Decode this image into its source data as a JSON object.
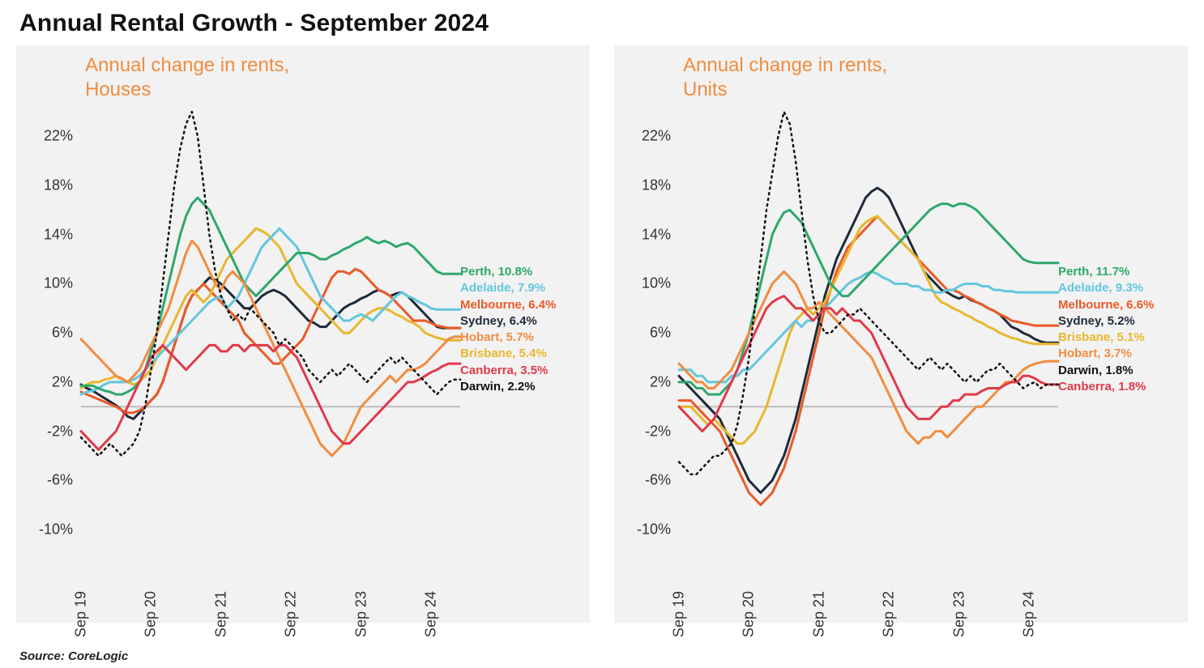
{
  "title": "Annual Rental Growth - September 2024",
  "source": "Source: CoreLogic",
  "chart_style": {
    "panel_bg": "#f2f2f2",
    "title_color": "#f28c3f",
    "title_fontsize": 24,
    "axis_tick_fontsize": 18,
    "axis_tick_color": "#333333",
    "zero_line_color": "#bdbdbd",
    "zero_line_width": 2,
    "series_line_width": 3,
    "darwin_line_width": 2.5,
    "legend_fontsize": 15,
    "legend_fontweight": 700,
    "font_family": "Arial"
  },
  "axes": {
    "x": {
      "domain_months": [
        0,
        65
      ],
      "tick_positions": [
        0,
        12,
        24,
        36,
        48,
        60
      ],
      "tick_labels": [
        "Sep 19",
        "Sep 20",
        "Sep 21",
        "Sep 22",
        "Sep 23",
        "Sep 24"
      ],
      "tick_rotation_deg": -90
    },
    "y": {
      "domain": [
        -10,
        24
      ],
      "tick_values": [
        -10,
        -6,
        -2,
        2,
        6,
        10,
        14,
        18,
        22
      ],
      "tick_labels": [
        "-10%",
        "-6%",
        "-2%",
        "2%",
        "6%",
        "10%",
        "14%",
        "18%",
        "22%"
      ]
    }
  },
  "colors": {
    "Perth": "#2ea86b",
    "Adelaide": "#63c6dd",
    "Melbourne": "#eb5a28",
    "Sydney": "#1e2a39",
    "Hobart": "#f28c3f",
    "Brisbane": "#e8b72e",
    "Canberra": "#e03a4a",
    "Darwin": "#111111"
  },
  "panels": [
    {
      "key": "houses",
      "title_line1": "Annual change in rents,",
      "title_line2": "Houses",
      "legend_order": [
        "Perth",
        "Adelaide",
        "Melbourne",
        "Sydney",
        "Hobart",
        "Brisbane",
        "Canberra",
        "Darwin"
      ],
      "legend_values": {
        "Perth": "10.8%",
        "Adelaide": "7.9%",
        "Melbourne": "6.4%",
        "Sydney": "6.4%",
        "Hobart": "5.7%",
        "Brisbane": "5.4%",
        "Canberra": "3.5%",
        "Darwin": "2.2%"
      },
      "series": {
        "Sydney": [
          1.8,
          1.5,
          1.3,
          1.0,
          0.7,
          0.4,
          0.1,
          -0.3,
          -0.8,
          -1.0,
          -0.5,
          0.0,
          0.5,
          1.0,
          2.0,
          3.5,
          5.0,
          6.5,
          8.0,
          9.0,
          9.5,
          10.0,
          10.5,
          10.3,
          10.0,
          9.5,
          9.0,
          8.5,
          8.0,
          8.0,
          8.5,
          9.0,
          9.3,
          9.5,
          9.3,
          9.0,
          8.5,
          8.0,
          7.5,
          7.0,
          6.8,
          6.5,
          6.5,
          7.0,
          7.5,
          8.0,
          8.3,
          8.5,
          8.8,
          9.0,
          9.3,
          9.5,
          9.3,
          9.0,
          9.2,
          9.3,
          9.0,
          8.5,
          8.0,
          7.5,
          7.0,
          6.5,
          6.4,
          6.4,
          6.4,
          6.4
        ],
        "Melbourne": [
          1.2,
          1.0,
          0.8,
          0.6,
          0.4,
          0.2,
          0.0,
          -0.3,
          -0.5,
          -0.5,
          -0.3,
          0.0,
          0.5,
          1.0,
          2.0,
          3.5,
          5.0,
          6.5,
          8.0,
          9.0,
          9.5,
          10.0,
          9.5,
          9.0,
          8.5,
          8.0,
          7.5,
          7.0,
          6.0,
          5.5,
          5.0,
          4.5,
          4.0,
          3.5,
          3.5,
          4.0,
          4.5,
          5.0,
          5.5,
          6.5,
          7.5,
          8.5,
          9.5,
          10.5,
          11.0,
          11.0,
          10.8,
          11.2,
          11.0,
          10.5,
          10.0,
          9.5,
          9.3,
          9.0,
          8.5,
          8.0,
          7.5,
          7.0,
          7.0,
          7.0,
          6.8,
          6.6,
          6.5,
          6.4,
          6.4,
          6.4
        ],
        "Brisbane": [
          1.5,
          1.8,
          2.0,
          2.0,
          2.2,
          2.3,
          2.5,
          2.2,
          2.0,
          1.8,
          2.0,
          2.5,
          3.0,
          4.0,
          5.0,
          6.0,
          7.0,
          8.0,
          9.0,
          9.5,
          9.0,
          8.5,
          9.0,
          10.0,
          11.0,
          12.0,
          12.5,
          13.0,
          13.5,
          14.0,
          14.5,
          14.3,
          14.0,
          13.5,
          13.0,
          12.0,
          11.0,
          10.0,
          9.5,
          9.0,
          8.5,
          8.0,
          7.5,
          7.0,
          6.5,
          6.0,
          6.0,
          6.5,
          7.0,
          7.5,
          7.8,
          8.0,
          8.0,
          7.8,
          7.5,
          7.3,
          7.0,
          6.8,
          6.5,
          6.0,
          5.8,
          5.6,
          5.5,
          5.4,
          5.4,
          5.4
        ],
        "Adelaide": [
          1.0,
          1.2,
          1.3,
          1.5,
          1.8,
          2.0,
          2.0,
          2.0,
          2.0,
          2.2,
          2.5,
          3.0,
          3.5,
          4.0,
          4.5,
          5.0,
          5.5,
          6.0,
          6.5,
          7.0,
          7.5,
          8.0,
          8.5,
          8.8,
          9.0,
          8.0,
          8.5,
          9.0,
          10.0,
          11.0,
          12.0,
          13.0,
          13.5,
          14.0,
          14.5,
          14.0,
          13.5,
          13.0,
          12.0,
          11.0,
          10.0,
          9.0,
          8.5,
          8.0,
          7.5,
          7.0,
          7.0,
          7.3,
          7.5,
          7.3,
          7.0,
          7.5,
          8.0,
          8.5,
          9.0,
          9.3,
          9.0,
          8.8,
          8.5,
          8.3,
          8.0,
          7.9,
          7.9,
          7.9,
          7.9,
          7.9
        ],
        "Perth": [
          1.7,
          1.7,
          1.7,
          1.5,
          1.3,
          1.2,
          1.0,
          1.0,
          1.2,
          1.5,
          2.0,
          3.0,
          4.5,
          6.0,
          8.0,
          10.0,
          12.0,
          14.0,
          15.5,
          16.5,
          17.0,
          16.5,
          16.0,
          15.0,
          14.0,
          13.0,
          12.0,
          11.0,
          10.0,
          9.5,
          9.0,
          9.5,
          10.0,
          10.5,
          11.0,
          11.5,
          12.0,
          12.5,
          12.5,
          12.5,
          12.3,
          12.0,
          12.0,
          12.3,
          12.5,
          12.8,
          13.0,
          13.3,
          13.5,
          13.8,
          13.5,
          13.3,
          13.5,
          13.3,
          13.0,
          13.2,
          13.3,
          13.0,
          12.5,
          12.0,
          11.5,
          11.0,
          10.8,
          10.8,
          10.8,
          10.8
        ],
        "Hobart": [
          5.5,
          5.0,
          4.5,
          4.0,
          3.5,
          3.0,
          2.5,
          2.3,
          2.0,
          2.5,
          3.0,
          4.0,
          5.0,
          6.0,
          7.0,
          8.0,
          9.5,
          11.0,
          12.5,
          13.5,
          13.0,
          12.0,
          11.0,
          10.0,
          9.5,
          10.5,
          11.0,
          10.5,
          10.0,
          9.0,
          8.0,
          7.0,
          6.0,
          5.0,
          4.0,
          3.0,
          2.0,
          1.0,
          0.0,
          -1.0,
          -2.0,
          -3.0,
          -3.5,
          -4.0,
          -3.5,
          -3.0,
          -2.0,
          -1.0,
          0.0,
          0.5,
          1.0,
          1.5,
          2.0,
          2.5,
          2.0,
          2.5,
          3.0,
          3.0,
          3.2,
          3.5,
          4.0,
          4.5,
          5.0,
          5.5,
          5.7,
          5.7
        ],
        "Canberra": [
          -2.0,
          -2.5,
          -3.0,
          -3.5,
          -3.0,
          -2.5,
          -2.0,
          -1.0,
          0.0,
          1.0,
          2.0,
          3.0,
          4.0,
          4.5,
          5.0,
          4.5,
          4.0,
          3.5,
          3.0,
          3.5,
          4.0,
          4.5,
          5.0,
          5.0,
          4.5,
          4.5,
          5.0,
          5.0,
          4.5,
          5.0,
          5.0,
          5.0,
          5.0,
          4.5,
          5.0,
          5.0,
          4.5,
          4.0,
          3.0,
          2.0,
          1.0,
          0.0,
          -1.0,
          -2.0,
          -2.5,
          -3.0,
          -3.0,
          -2.5,
          -2.0,
          -1.5,
          -1.0,
          -0.5,
          0.0,
          0.5,
          1.0,
          1.5,
          2.0,
          2.0,
          2.2,
          2.5,
          2.8,
          3.0,
          3.3,
          3.5,
          3.5,
          3.5
        ],
        "Darwin": [
          -2.5,
          -3.0,
          -3.5,
          -4.0,
          -3.5,
          -3.0,
          -3.5,
          -4.0,
          -3.5,
          -3.0,
          -2.0,
          0.0,
          3.0,
          6.0,
          10.0,
          14.0,
          18.0,
          21.0,
          23.0,
          24.0,
          22.0,
          18.0,
          14.0,
          11.0,
          9.0,
          8.0,
          7.0,
          7.5,
          7.0,
          8.0,
          7.5,
          7.0,
          6.5,
          6.0,
          5.0,
          5.5,
          5.0,
          4.5,
          4.0,
          3.0,
          2.5,
          2.0,
          2.5,
          3.0,
          2.5,
          3.0,
          3.5,
          3.0,
          2.5,
          2.0,
          2.5,
          3.0,
          3.5,
          4.0,
          3.5,
          4.0,
          3.5,
          3.0,
          2.5,
          2.0,
          1.5,
          1.0,
          1.5,
          2.0,
          2.2,
          2.2
        ]
      },
      "dashed": {
        "Darwin": true
      }
    },
    {
      "key": "units",
      "title_line1": "Annual change in rents,",
      "title_line2": "Units",
      "legend_order": [
        "Perth",
        "Adelaide",
        "Melbourne",
        "Sydney",
        "Brisbane",
        "Hobart",
        "Darwin",
        "Canberra"
      ],
      "legend_values": {
        "Perth": "11.7%",
        "Adelaide": "9.3%",
        "Melbourne": "6.6%",
        "Sydney": "5.2%",
        "Brisbane": "5.1%",
        "Hobart": "3.7%",
        "Darwin": "1.8%",
        "Canberra": "1.8%"
      },
      "series": {
        "Sydney": [
          2.5,
          2.0,
          1.5,
          1.0,
          0.5,
          0.0,
          -0.5,
          -1.0,
          -2.0,
          -3.0,
          -4.0,
          -5.0,
          -6.0,
          -6.5,
          -7.0,
          -6.5,
          -6.0,
          -5.0,
          -4.0,
          -2.5,
          -1.0,
          1.0,
          3.0,
          5.0,
          7.0,
          9.0,
          10.5,
          12.0,
          13.0,
          14.0,
          15.0,
          16.0,
          17.0,
          17.5,
          17.8,
          17.5,
          17.0,
          16.0,
          15.0,
          14.0,
          13.0,
          12.0,
          11.0,
          10.5,
          10.0,
          9.5,
          9.3,
          9.0,
          8.8,
          9.0,
          8.7,
          8.5,
          8.3,
          8.0,
          7.8,
          7.5,
          7.0,
          6.5,
          6.3,
          6.0,
          5.8,
          5.5,
          5.3,
          5.2,
          5.2,
          5.2
        ],
        "Melbourne": [
          0.5,
          0.5,
          0.5,
          0.0,
          -0.5,
          -1.0,
          -1.5,
          -2.0,
          -3.0,
          -4.0,
          -5.0,
          -6.0,
          -7.0,
          -7.5,
          -8.0,
          -7.5,
          -7.0,
          -6.0,
          -5.0,
          -3.5,
          -2.0,
          0.0,
          2.0,
          4.0,
          6.0,
          8.0,
          9.5,
          11.0,
          12.0,
          13.0,
          13.5,
          14.0,
          14.5,
          15.0,
          15.5,
          15.0,
          14.5,
          14.0,
          13.5,
          13.0,
          12.5,
          12.0,
          11.5,
          11.0,
          10.5,
          10.0,
          9.5,
          9.5,
          9.3,
          9.0,
          8.8,
          8.5,
          8.3,
          8.0,
          7.8,
          7.5,
          7.3,
          7.0,
          6.9,
          6.8,
          6.7,
          6.6,
          6.6,
          6.6,
          6.6,
          6.6
        ],
        "Brisbane": [
          0.0,
          0.0,
          0.0,
          -0.5,
          -1.0,
          -1.5,
          -1.0,
          -1.5,
          -2.0,
          -2.5,
          -3.0,
          -3.0,
          -2.5,
          -2.0,
          -1.0,
          0.0,
          1.5,
          3.0,
          4.5,
          6.0,
          7.0,
          7.5,
          8.0,
          7.5,
          8.0,
          8.5,
          9.5,
          10.5,
          11.5,
          12.5,
          13.5,
          14.5,
          15.0,
          15.3,
          15.5,
          15.0,
          14.5,
          14.0,
          13.5,
          13.0,
          12.5,
          12.0,
          11.0,
          10.0,
          9.0,
          8.5,
          8.3,
          8.0,
          7.8,
          7.5,
          7.3,
          7.0,
          6.8,
          6.5,
          6.3,
          6.0,
          5.8,
          5.6,
          5.5,
          5.3,
          5.2,
          5.1,
          5.1,
          5.1,
          5.1,
          5.1
        ],
        "Adelaide": [
          3.0,
          3.0,
          3.0,
          2.5,
          2.5,
          2.0,
          2.0,
          2.0,
          2.0,
          2.5,
          2.5,
          3.0,
          3.0,
          3.5,
          4.0,
          4.5,
          5.0,
          5.5,
          6.0,
          6.5,
          7.0,
          6.5,
          7.0,
          7.0,
          7.5,
          8.0,
          8.5,
          9.0,
          9.5,
          10.0,
          10.3,
          10.5,
          10.8,
          11.0,
          10.8,
          10.5,
          10.3,
          10.0,
          10.0,
          10.0,
          9.8,
          9.8,
          9.5,
          9.5,
          9.3,
          9.3,
          9.5,
          9.5,
          9.8,
          10.0,
          10.0,
          10.0,
          9.8,
          9.8,
          9.5,
          9.5,
          9.4,
          9.4,
          9.3,
          9.3,
          9.3,
          9.3,
          9.3,
          9.3,
          9.3,
          9.3
        ],
        "Perth": [
          2.0,
          2.0,
          2.0,
          1.5,
          1.5,
          1.0,
          1.0,
          1.0,
          1.5,
          2.0,
          3.0,
          4.5,
          6.0,
          8.0,
          10.0,
          12.0,
          14.0,
          15.0,
          15.8,
          16.0,
          15.5,
          15.0,
          14.0,
          13.0,
          12.0,
          11.0,
          10.0,
          9.5,
          9.0,
          9.0,
          9.5,
          10.0,
          10.5,
          11.0,
          11.5,
          12.0,
          12.5,
          13.0,
          13.5,
          14.0,
          14.5,
          15.0,
          15.5,
          16.0,
          16.3,
          16.5,
          16.5,
          16.3,
          16.5,
          16.5,
          16.3,
          16.0,
          15.5,
          15.0,
          14.5,
          14.0,
          13.5,
          13.0,
          12.5,
          12.0,
          11.8,
          11.7,
          11.7,
          11.7,
          11.7,
          11.7
        ],
        "Hobart": [
          3.5,
          3.0,
          2.5,
          2.0,
          2.0,
          1.5,
          1.5,
          2.0,
          2.5,
          3.0,
          4.0,
          5.0,
          6.0,
          7.0,
          8.0,
          9.0,
          10.0,
          10.5,
          11.0,
          10.5,
          10.0,
          9.0,
          8.0,
          8.0,
          8.5,
          8.0,
          7.5,
          7.0,
          6.5,
          6.0,
          5.5,
          5.0,
          4.5,
          4.0,
          3.0,
          2.0,
          1.0,
          0.0,
          -1.0,
          -2.0,
          -2.5,
          -3.0,
          -2.5,
          -2.5,
          -2.0,
          -2.0,
          -2.5,
          -2.0,
          -1.5,
          -1.0,
          -0.5,
          0.0,
          0.0,
          0.5,
          1.0,
          1.5,
          2.0,
          2.0,
          2.5,
          3.0,
          3.3,
          3.5,
          3.6,
          3.7,
          3.7,
          3.7
        ],
        "Canberra": [
          0.0,
          -0.5,
          -1.0,
          -1.5,
          -2.0,
          -1.5,
          -1.0,
          0.0,
          1.0,
          2.0,
          3.0,
          4.0,
          5.0,
          6.0,
          7.0,
          8.0,
          8.5,
          8.8,
          9.0,
          8.5,
          8.0,
          8.0,
          7.5,
          7.0,
          7.5,
          8.0,
          8.0,
          7.5,
          8.0,
          7.5,
          7.0,
          7.0,
          6.5,
          6.0,
          5.0,
          4.0,
          3.0,
          2.0,
          1.0,
          0.0,
          -0.5,
          -1.0,
          -1.0,
          -1.0,
          -0.5,
          0.0,
          0.0,
          0.5,
          0.5,
          1.0,
          1.0,
          1.0,
          1.3,
          1.5,
          1.5,
          1.5,
          1.8,
          2.0,
          2.0,
          2.5,
          2.5,
          2.3,
          2.0,
          1.8,
          1.8,
          1.8
        ],
        "Darwin": [
          -4.5,
          -5.0,
          -5.5,
          -5.5,
          -5.0,
          -4.5,
          -4.0,
          -4.0,
          -3.5,
          -3.0,
          -1.5,
          1.0,
          4.0,
          8.0,
          12.0,
          16.0,
          19.0,
          22.0,
          24.0,
          23.0,
          20.0,
          16.0,
          12.0,
          9.0,
          7.0,
          6.0,
          6.0,
          6.5,
          7.0,
          7.5,
          7.5,
          8.0,
          7.5,
          7.0,
          6.5,
          6.0,
          5.5,
          5.0,
          4.5,
          4.0,
          3.5,
          3.0,
          3.5,
          4.0,
          3.5,
          3.0,
          3.5,
          3.0,
          2.5,
          2.0,
          2.5,
          2.0,
          2.5,
          3.0,
          3.0,
          3.5,
          3.0,
          2.5,
          2.0,
          1.5,
          1.8,
          2.0,
          1.5,
          1.8,
          1.8,
          1.8
        ]
      },
      "dashed": {
        "Darwin": true
      }
    }
  ]
}
